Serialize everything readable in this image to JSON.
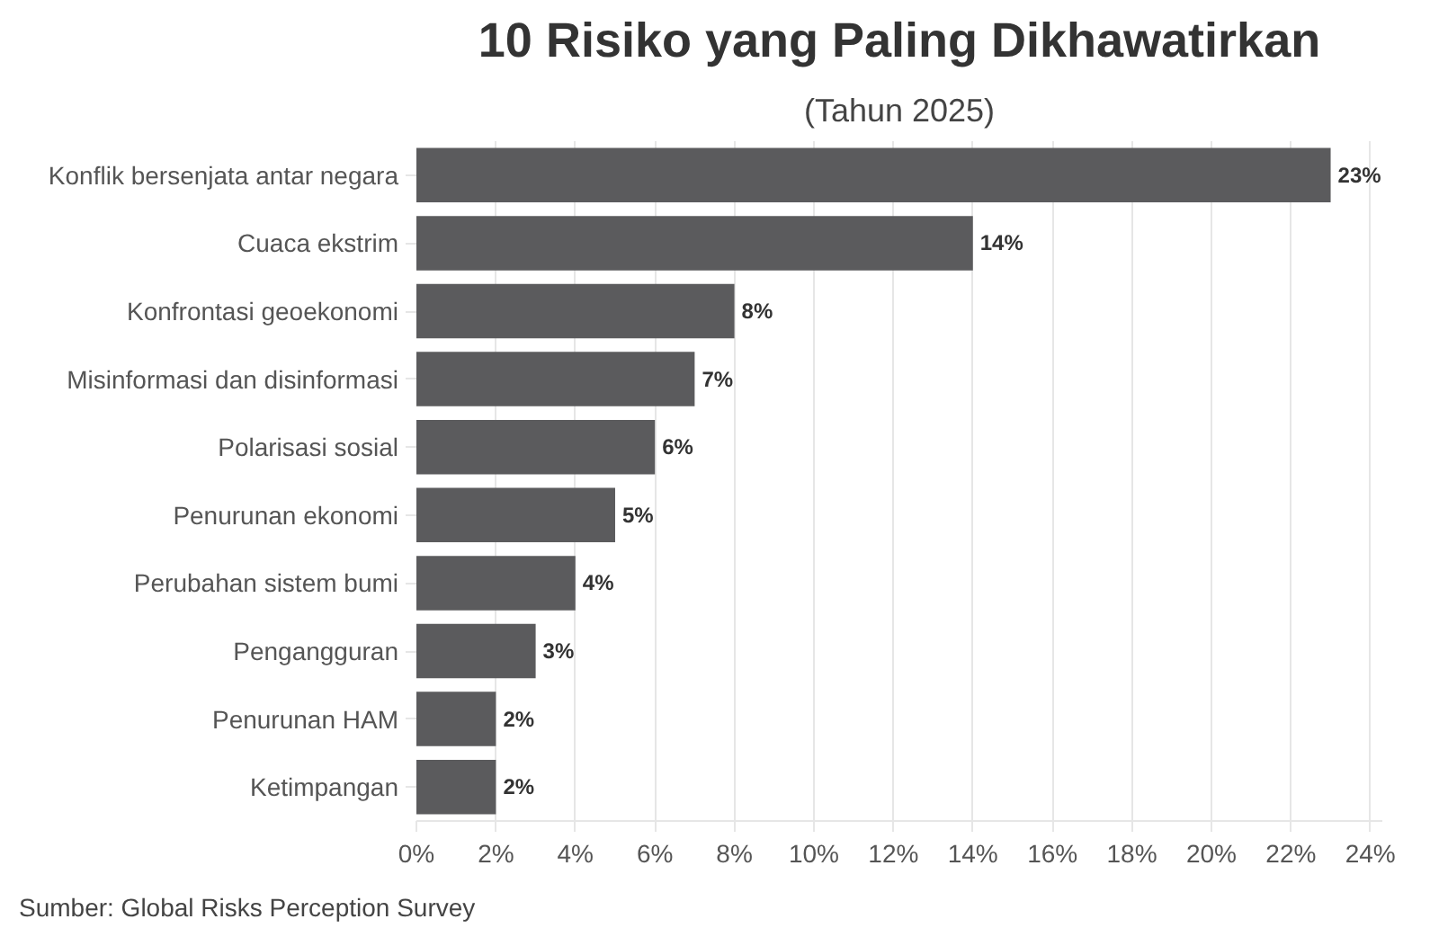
{
  "chart_data": {
    "type": "bar",
    "orientation": "horizontal",
    "title": "10 Risiko yang Paling Dikhawatirkan",
    "subtitle": "(Tahun 2025)",
    "categories": [
      "Konflik bersenjata antar negara",
      "Cuaca ekstrim",
      "Konfrontasi geoekonomi",
      "Misinformasi dan disinformasi",
      "Polarisasi sosial",
      "Penurunan ekonomi",
      "Perubahan sistem bumi",
      "Pengangguran",
      "Penurunan HAM",
      "Ketimpangan"
    ],
    "values": [
      23,
      14,
      8,
      7,
      6,
      5,
      4,
      3,
      2,
      2
    ],
    "color": "#5b5b5d",
    "value_labels": [
      "23%",
      "14%",
      "8%",
      "7%",
      "6%",
      "5%",
      "4%",
      "3%",
      "2%",
      "2%"
    ],
    "xlim": [
      0,
      24.3
    ],
    "xticks": [
      {
        "value": 0,
        "label": "0%"
      },
      {
        "value": 2,
        "label": "2%"
      },
      {
        "value": 4,
        "label": "4%"
      },
      {
        "value": 6,
        "label": "6%"
      },
      {
        "value": 8,
        "label": "8%"
      },
      {
        "value": 10,
        "label": "10%"
      },
      {
        "value": 12,
        "label": "12%"
      },
      {
        "value": 14,
        "label": "14%"
      },
      {
        "value": 16,
        "label": "16%"
      },
      {
        "value": 18,
        "label": "18%"
      },
      {
        "value": 20,
        "label": "20%"
      },
      {
        "value": 22,
        "label": "22%"
      },
      {
        "value": 24,
        "label": "24%"
      }
    ],
    "grid": "x",
    "annotations": [
      "Sumber: Global Risks Perception Survey"
    ]
  }
}
